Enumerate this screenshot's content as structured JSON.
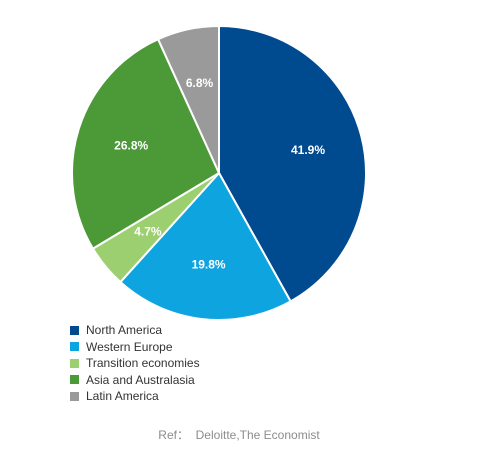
{
  "chart_data": {
    "type": "pie",
    "categories": [
      "North America",
      "Western Europe",
      "Transition economies",
      "Asia and Australasia",
      "Latin America"
    ],
    "values": [
      41.9,
      19.8,
      4.7,
      26.8,
      6.8
    ],
    "labels": [
      "41.9%",
      "19.8%",
      "4.7%",
      "26.8%",
      "6.8%"
    ],
    "colors": [
      "#004a8f",
      "#0ea4e0",
      "#9ccf70",
      "#4b9a37",
      "#9a9a9a"
    ],
    "start": "top",
    "direction": "clockwise",
    "legend_position": "bottom-left"
  },
  "source_note": "Ref：  Deloitte,The Economist"
}
